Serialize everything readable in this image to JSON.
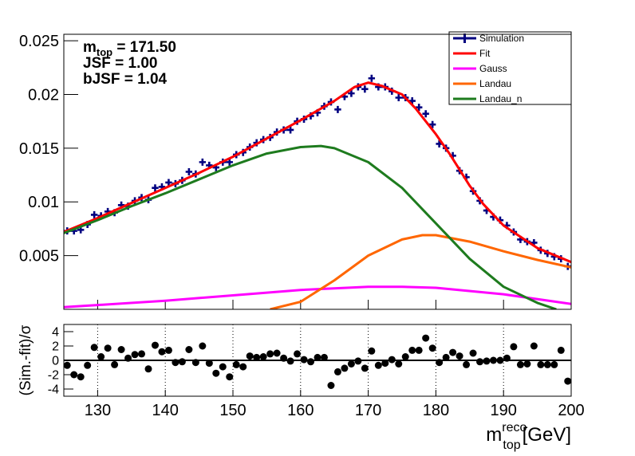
{
  "chart_data": [
    {
      "type": "line",
      "legend": "top-right",
      "ylim": [
        0,
        0.0256
      ],
      "yticks": [
        0.005,
        0.01,
        0.015,
        0.02,
        0.025
      ],
      "xlim": [
        125,
        200
      ],
      "xticks": [
        130,
        140,
        150,
        160,
        170,
        180,
        190,
        200
      ],
      "xtick_labels": false,
      "annotations": [
        {
          "text": "m",
          "sub": "top",
          "rest": " = 171.50"
        },
        "JSF = 1.00",
        "bJSF = 1.04"
      ],
      "series": [
        {
          "name": "Simulation",
          "color": "#000080",
          "style": "cross",
          "x": [
            125.5,
            126.5,
            127.5,
            128.5,
            129.5,
            130.5,
            131.5,
            132.5,
            133.5,
            134.5,
            135.5,
            136.5,
            137.5,
            138.5,
            139.5,
            140.5,
            141.5,
            142.5,
            143.5,
            144.5,
            145.5,
            146.5,
            147.5,
            148.5,
            149.5,
            150.5,
            151.5,
            152.5,
            153.5,
            154.5,
            155.5,
            156.5,
            157.5,
            158.5,
            159.5,
            160.5,
            161.5,
            162.5,
            163.5,
            164.5,
            165.5,
            166.5,
            167.5,
            168.5,
            169.5,
            170.5,
            171.5,
            172.5,
            173.5,
            174.5,
            175.5,
            176.5,
            177.5,
            178.5,
            179.5,
            180.5,
            181.5,
            182.5,
            183.5,
            184.5,
            185.5,
            186.5,
            187.5,
            188.5,
            189.5,
            190.5,
            191.5,
            192.5,
            193.5,
            194.5,
            195.5,
            196.5,
            197.5,
            198.5,
            199.5
          ],
          "values": [
            0.0073,
            0.0073,
            0.0074,
            0.0079,
            0.0088,
            0.0087,
            0.0091,
            0.009,
            0.0097,
            0.0096,
            0.0101,
            0.0104,
            0.0102,
            0.0113,
            0.0114,
            0.0118,
            0.0117,
            0.012,
            0.0128,
            0.0126,
            0.0137,
            0.0134,
            0.0132,
            0.0137,
            0.0137,
            0.0144,
            0.0146,
            0.0151,
            0.0155,
            0.0158,
            0.016,
            0.0165,
            0.0167,
            0.0167,
            0.0175,
            0.0177,
            0.018,
            0.0183,
            0.0189,
            0.0193,
            0.0186,
            0.0198,
            0.0201,
            0.0207,
            0.0205,
            0.0215,
            0.0207,
            0.0207,
            0.0203,
            0.0197,
            0.0197,
            0.0194,
            0.0188,
            0.0182,
            0.0172,
            0.0154,
            0.015,
            0.0143,
            0.0129,
            0.0123,
            0.011,
            0.0101,
            0.0092,
            0.0086,
            0.0083,
            0.0078,
            0.0072,
            0.0065,
            0.0063,
            0.0062,
            0.0055,
            0.0052,
            0.0049,
            0.0047,
            0.004
          ]
        },
        {
          "name": "Fit",
          "color": "#ff0000",
          "style": "line",
          "x": [
            125,
            130,
            135,
            140,
            145,
            150,
            155,
            160,
            165,
            168,
            170,
            172,
            175,
            177,
            180,
            182,
            185,
            187,
            190,
            195,
            200
          ],
          "values": [
            0.0072,
            0.0085,
            0.0099,
            0.0113,
            0.0127,
            0.0142,
            0.0159,
            0.0176,
            0.0194,
            0.0207,
            0.0211,
            0.0208,
            0.02,
            0.0187,
            0.0163,
            0.0145,
            0.0115,
            0.0098,
            0.0078,
            0.0057,
            0.0044
          ]
        },
        {
          "name": "Gauss",
          "color": "#ff00ff",
          "style": "line",
          "x": [
            125,
            130,
            140,
            150,
            160,
            170,
            175,
            180,
            190,
            200
          ],
          "values": [
            0.0002,
            0.0004,
            0.0008,
            0.0013,
            0.0018,
            0.0021,
            0.0021,
            0.002,
            0.0014,
            0.0005
          ]
        },
        {
          "name": "Landau",
          "color": "#ff6600",
          "style": "line",
          "x": [
            155.5,
            160,
            165,
            170,
            175,
            178,
            180,
            185,
            190,
            195,
            200
          ],
          "values": [
            0,
            0.0007,
            0.0027,
            0.005,
            0.0065,
            0.0069,
            0.0069,
            0.0063,
            0.0054,
            0.0046,
            0.0039
          ]
        },
        {
          "name": "Landau_n",
          "color": "#1e7b1e",
          "style": "line",
          "x": [
            125,
            130,
            135,
            140,
            145,
            150,
            155,
            160,
            163,
            165,
            170,
            175,
            180,
            185,
            190,
            195,
            197.8
          ],
          "values": [
            0.0071,
            0.0083,
            0.0096,
            0.0108,
            0.0121,
            0.0134,
            0.0145,
            0.0151,
            0.0152,
            0.015,
            0.0137,
            0.0113,
            0.008,
            0.0047,
            0.0021,
            0.0006,
            0
          ]
        }
      ]
    },
    {
      "type": "scatter",
      "ylabel": "(Sim.-fit)/σ",
      "xlabel": {
        "main": "m",
        "sup": "reco",
        "sub": "top",
        "unit": "[GeV]"
      },
      "ylim": [
        -5,
        5
      ],
      "yticks": [
        -4,
        -2,
        0,
        2,
        4
      ],
      "xlim": [
        125,
        200
      ],
      "xticks": [
        130,
        140,
        150,
        160,
        170,
        180,
        190,
        200
      ],
      "xtick_labels": true,
      "xgrid": true,
      "color": "#000000",
      "x": [
        125.5,
        126.5,
        127.5,
        128.5,
        129.5,
        130.5,
        131.5,
        132.5,
        133.5,
        134.5,
        135.5,
        136.5,
        137.5,
        138.5,
        139.5,
        140.5,
        141.5,
        142.5,
        143.5,
        144.5,
        145.5,
        146.5,
        147.5,
        148.5,
        149.5,
        150.5,
        151.5,
        152.5,
        153.5,
        154.5,
        155.5,
        156.5,
        157.5,
        158.5,
        159.5,
        160.5,
        161.5,
        162.5,
        163.5,
        164.5,
        165.5,
        166.5,
        167.5,
        168.5,
        169.5,
        170.5,
        171.5,
        172.5,
        173.5,
        174.5,
        175.5,
        176.5,
        177.5,
        178.5,
        179.5,
        180.5,
        181.5,
        182.5,
        183.5,
        184.5,
        185.5,
        186.5,
        187.5,
        188.5,
        189.5,
        190.5,
        191.5,
        192.5,
        193.5,
        194.5,
        195.5,
        196.5,
        197.5,
        198.5,
        199.5
      ],
      "values": [
        -0.7,
        -2,
        -2.3,
        -0.7,
        1.8,
        0.5,
        1.7,
        -0.6,
        1.5,
        0.3,
        0.8,
        0.9,
        -1.2,
        2.1,
        1.2,
        1.4,
        -0.3,
        -0.2,
        1.5,
        -0.3,
        2,
        -0.4,
        -1.8,
        -0.9,
        -2.3,
        -0.6,
        -0.9,
        0.6,
        0.4,
        0.5,
        0.9,
        1,
        0.3,
        -0.1,
        0.9,
        0.1,
        -0.2,
        0.4,
        0.4,
        -3.5,
        -1.6,
        -1.1,
        -0.5,
        -0.1,
        -1.1,
        1.3,
        -0.7,
        -0.4,
        0.1,
        -0.5,
        0.5,
        1.4,
        1.4,
        3.1,
        1.7,
        -0.3,
        0.4,
        1.1,
        0.6,
        -0.6,
        1,
        -0.2,
        -0.1,
        0,
        0,
        0.3,
        1.9,
        -0.6,
        -0.5,
        2,
        -0.6,
        -0.6,
        -0.6,
        1.4,
        -2.9
      ]
    }
  ]
}
